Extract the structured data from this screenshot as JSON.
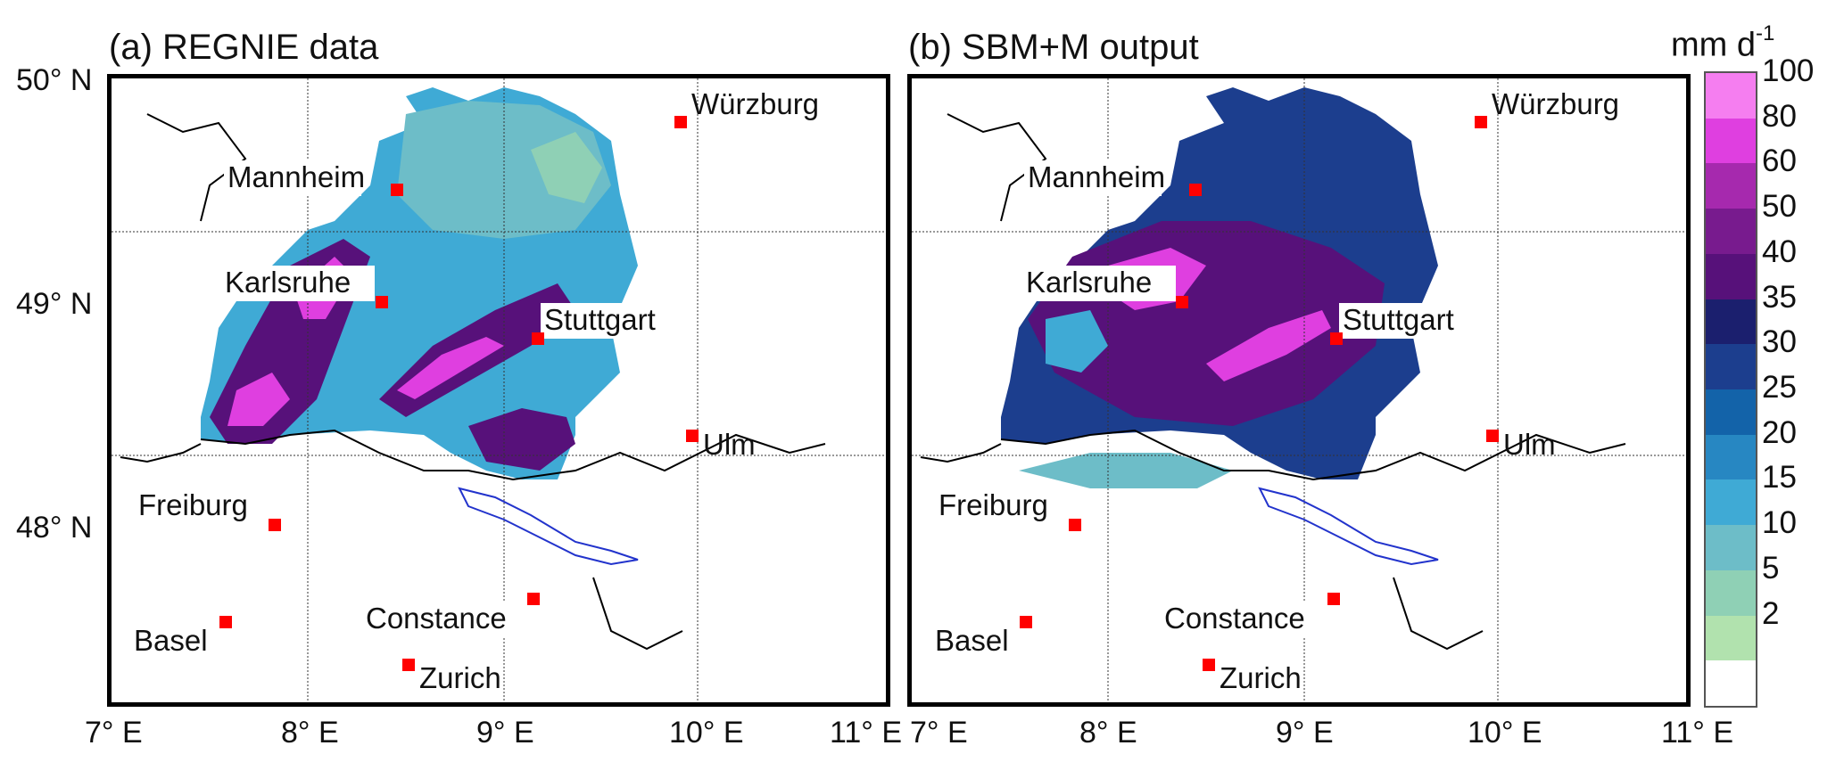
{
  "panels": [
    {
      "title": "(a) REGNIE data"
    },
    {
      "title": "(b) SBM+M output"
    }
  ],
  "axes": {
    "lat_labels": [
      "50° N",
      "49° N",
      "48° N"
    ],
    "lon_labels": [
      "7° E",
      "8° E",
      "9° E",
      "10° E",
      "11° E"
    ]
  },
  "colorbar": {
    "unit_base": "mm d",
    "unit_exp": "-1",
    "levels": [
      "100",
      "80",
      "60",
      "50",
      "40",
      "35",
      "30",
      "25",
      "20",
      "15",
      "10",
      "5",
      "2"
    ],
    "colors": [
      "#f57ef0",
      "#df3fe0",
      "#a629ae",
      "#781b8e",
      "#57117a",
      "#1b1f6e",
      "#1c3e8e",
      "#1363a9",
      "#2787c2",
      "#3faad5",
      "#6dbdc8",
      "#8fd0b5",
      "#b1e2ae",
      "#ffffff"
    ]
  },
  "cities": [
    {
      "name": "Würzburg"
    },
    {
      "name": "Mannheim"
    },
    {
      "name": "Karlsruhe"
    },
    {
      "name": "Stuttgart"
    },
    {
      "name": "Ulm"
    },
    {
      "name": "Freiburg"
    },
    {
      "name": "Constance"
    },
    {
      "name": "Basel"
    },
    {
      "name": "Zurich"
    }
  ],
  "colors": {
    "marker": "#ff0000",
    "lake_outline": "#2233cc",
    "border": "#000000"
  }
}
